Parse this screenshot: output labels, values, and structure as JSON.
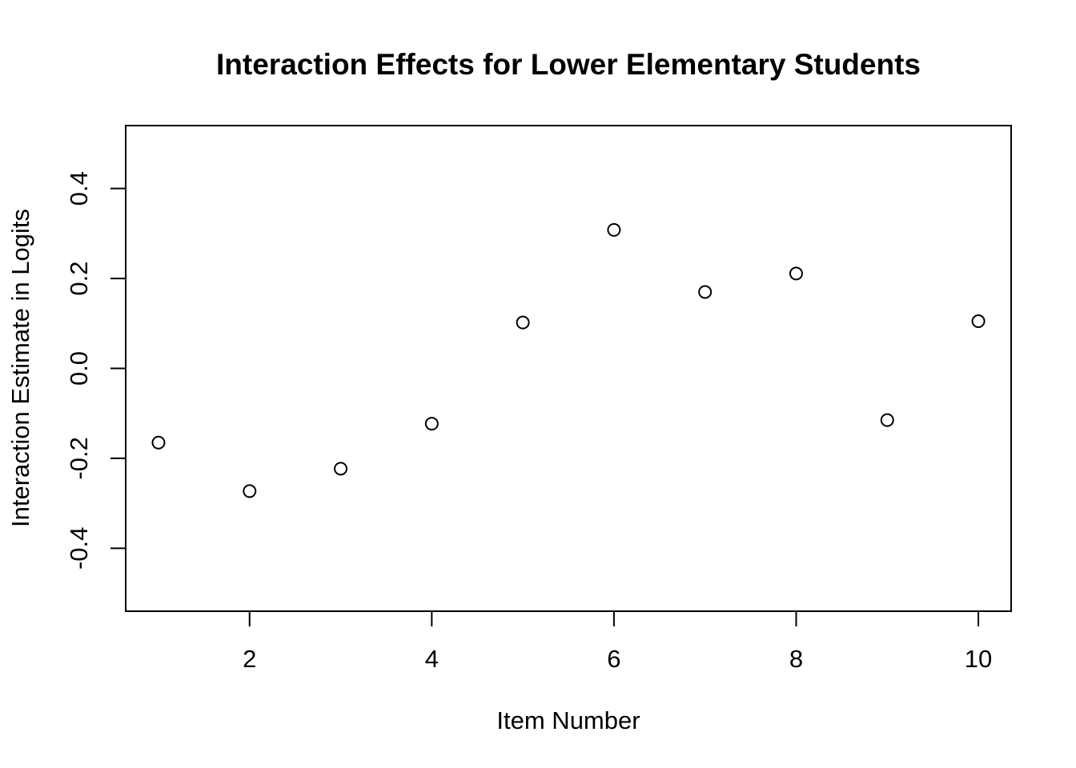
{
  "chart_data": {
    "type": "scatter",
    "title": "Interaction Effects for Lower Elementary Students",
    "xlabel": "Item Number",
    "ylabel": "Interaction Estimate in Logits",
    "x": [
      1,
      2,
      3,
      4,
      5,
      6,
      7,
      8,
      9,
      10
    ],
    "y": [
      -0.165,
      -0.273,
      -0.223,
      -0.123,
      0.102,
      0.308,
      0.17,
      0.211,
      -0.115,
      0.105
    ],
    "xlim": [
      0.64,
      10.36
    ],
    "ylim": [
      -0.54,
      0.54
    ],
    "xticks": [
      2,
      4,
      6,
      8,
      10
    ],
    "xtick_labels": [
      "2",
      "4",
      "6",
      "8",
      "10"
    ],
    "yticks": [
      -0.4,
      -0.2,
      0.0,
      0.2,
      0.4
    ],
    "ytick_labels": [
      "-0.4",
      "-0.2",
      "0.0",
      "0.2",
      "0.4"
    ],
    "grid": false,
    "marker": "open-circle",
    "color": "#000000"
  }
}
